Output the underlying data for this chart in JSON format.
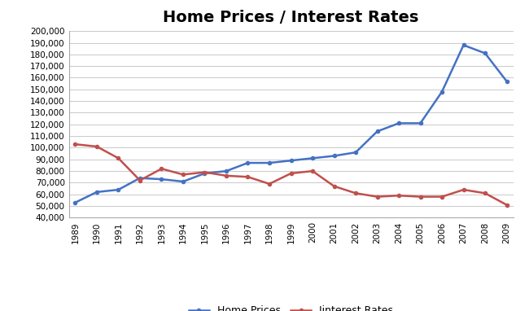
{
  "years": [
    1989,
    1990,
    1991,
    1992,
    1993,
    1994,
    1995,
    1996,
    1997,
    1998,
    1999,
    2000,
    2001,
    2002,
    2003,
    2004,
    2005,
    2006,
    2007,
    2008,
    2009
  ],
  "home_prices": [
    53000,
    62000,
    64000,
    74000,
    73000,
    71000,
    78000,
    80000,
    87000,
    87000,
    89000,
    91000,
    93000,
    96000,
    114000,
    121000,
    121000,
    148000,
    188000,
    181000,
    157000
  ],
  "interest_rates": [
    103000,
    101000,
    91000,
    72000,
    82000,
    77000,
    79000,
    76000,
    75000,
    69000,
    78000,
    80000,
    67000,
    61000,
    58000,
    59000,
    58000,
    58000,
    64000,
    61000,
    51000
  ],
  "home_prices_color": "#4472C4",
  "interest_rates_color": "#C0504D",
  "title": "Home Prices / Interest Rates",
  "title_fontsize": 14,
  "legend_home": "Home Prices",
  "legend_interest": "Iinterest Rates",
  "ylim_min": 40000,
  "ylim_max": 200000,
  "ytick_step": 10000,
  "background_color": "#FFFFFF",
  "grid_color": "#C0C0C0",
  "line_width": 1.8,
  "marker": "o",
  "marker_size": 3
}
